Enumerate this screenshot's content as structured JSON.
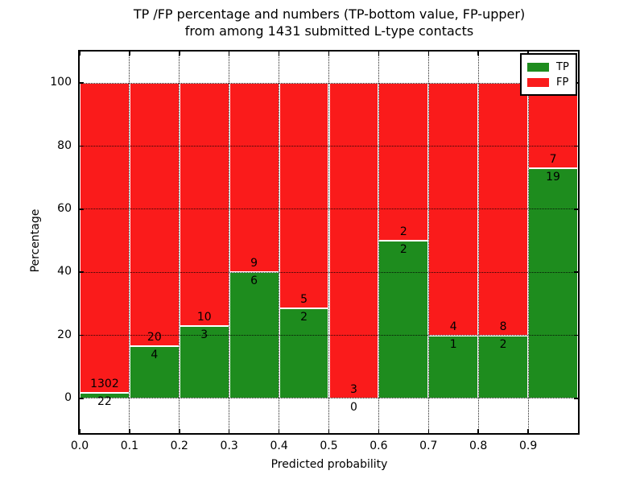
{
  "title": {
    "line1": "TP /FP percentage and numbers (TP-bottom value, FP-upper)",
    "line2": "from among 1431 submitted L-type contacts"
  },
  "chart_data": {
    "type": "bar",
    "stacked_percentage": true,
    "bins": [
      "0.0-0.1",
      "0.1-0.2",
      "0.2-0.3",
      "0.3-0.4",
      "0.4-0.5",
      "0.5-0.6",
      "0.6-0.7",
      "0.7-0.8",
      "0.8-0.9",
      "0.9-1.0"
    ],
    "series": [
      {
        "name": "TP",
        "color": "#1e8c1e",
        "counts": [
          22,
          4,
          3,
          6,
          2,
          0,
          2,
          1,
          2,
          19
        ]
      },
      {
        "name": "FP",
        "color": "#fa1b1b",
        "counts": [
          1302,
          20,
          10,
          9,
          5,
          3,
          2,
          4,
          8,
          7
        ]
      }
    ],
    "tp_percent": [
      1.66,
      16.67,
      23.08,
      40.0,
      28.57,
      0.0,
      50.0,
      20.0,
      20.0,
      73.08
    ],
    "total_contacts": 1431,
    "xlabel": "Predicted probability",
    "ylabel": "Percentage",
    "x_tick_labels": [
      "0.0",
      "0.1",
      "0.2",
      "0.3",
      "0.4",
      "0.5",
      "0.6",
      "0.7",
      "0.8",
      "0.9"
    ],
    "x_tick_values": [
      0.0,
      0.1,
      0.2,
      0.3,
      0.4,
      0.5,
      0.6,
      0.7,
      0.8,
      0.9
    ],
    "y_tick_values": [
      0,
      20,
      40,
      60,
      80,
      100
    ],
    "xlim": [
      0.0,
      1.0
    ],
    "ylim": [
      -11,
      110
    ],
    "grid": "dotted black, on top of bars",
    "legend": {
      "position": "upper right",
      "entries": [
        {
          "label": "TP",
          "color": "#1e8c1e"
        },
        {
          "label": "FP",
          "color": "#fa1b1b"
        }
      ]
    }
  }
}
